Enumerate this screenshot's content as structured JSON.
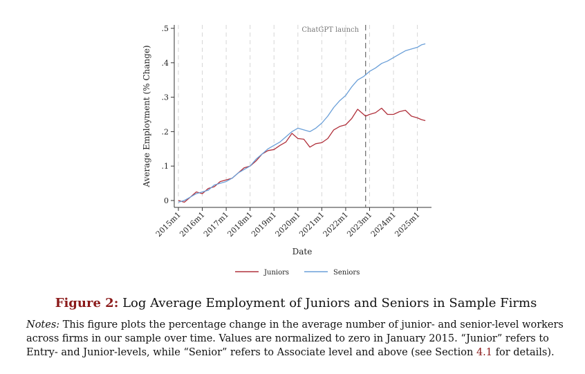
{
  "chart_data": {
    "type": "line",
    "xlabel": "Date",
    "ylabel": "Average Employment (% Change)",
    "x_ticks": [
      "2015m1",
      "2016m1",
      "2017m1",
      "2018m1",
      "2019m1",
      "2020m1",
      "2021m1",
      "2022m1",
      "2023m1",
      "2024m1",
      "2025m1"
    ],
    "xlim": [
      "2015-01",
      "2025-06"
    ],
    "y_ticks": [
      0,
      0.1,
      0.2,
      0.3,
      0.4,
      0.5
    ],
    "y_tick_labels": [
      "0",
      ".1",
      ".2",
      ".3",
      ".4",
      ".5"
    ],
    "ylim": [
      -0.02,
      0.51
    ],
    "grid": "vertical dashed at x ticks",
    "legend_position": "bottom",
    "annotation": {
      "text": "ChatGPT launch",
      "x": "2022-11",
      "style": "dashed vertical line"
    },
    "series": [
      {
        "name": "Juniors",
        "color": "#b0303b",
        "points": [
          [
            "2015-01",
            0.0
          ],
          [
            "2015-04",
            -0.005
          ],
          [
            "2015-07",
            0.01
          ],
          [
            "2015-10",
            0.025
          ],
          [
            "2016-01",
            0.02
          ],
          [
            "2016-04",
            0.035
          ],
          [
            "2016-07",
            0.04
          ],
          [
            "2016-10",
            0.055
          ],
          [
            "2017-01",
            0.06
          ],
          [
            "2017-04",
            0.065
          ],
          [
            "2017-07",
            0.08
          ],
          [
            "2017-10",
            0.095
          ],
          [
            "2018-01",
            0.1
          ],
          [
            "2018-04",
            0.115
          ],
          [
            "2018-07",
            0.135
          ],
          [
            "2018-10",
            0.145
          ],
          [
            "2019-01",
            0.148
          ],
          [
            "2019-04",
            0.16
          ],
          [
            "2019-07",
            0.17
          ],
          [
            "2019-10",
            0.195
          ],
          [
            "2020-01",
            0.18
          ],
          [
            "2020-04",
            0.178
          ],
          [
            "2020-07",
            0.155
          ],
          [
            "2020-10",
            0.165
          ],
          [
            "2021-01",
            0.168
          ],
          [
            "2021-04",
            0.18
          ],
          [
            "2021-07",
            0.205
          ],
          [
            "2021-10",
            0.215
          ],
          [
            "2022-01",
            0.22
          ],
          [
            "2022-04",
            0.238
          ],
          [
            "2022-07",
            0.265
          ],
          [
            "2022-10",
            0.25
          ],
          [
            "2022-11",
            0.245
          ],
          [
            "2023-01",
            0.25
          ],
          [
            "2023-04",
            0.255
          ],
          [
            "2023-07",
            0.268
          ],
          [
            "2023-10",
            0.25
          ],
          [
            "2024-01",
            0.25
          ],
          [
            "2024-04",
            0.258
          ],
          [
            "2024-07",
            0.262
          ],
          [
            "2024-10",
            0.245
          ],
          [
            "2025-01",
            0.24
          ],
          [
            "2025-03",
            0.235
          ],
          [
            "2025-05",
            0.232
          ]
        ]
      },
      {
        "name": "Seniors",
        "color": "#6a9fd8",
        "points": [
          [
            "2015-01",
            -0.005
          ],
          [
            "2015-04",
            0.0
          ],
          [
            "2015-07",
            0.01
          ],
          [
            "2015-10",
            0.02
          ],
          [
            "2016-01",
            0.025
          ],
          [
            "2016-04",
            0.03
          ],
          [
            "2016-07",
            0.045
          ],
          [
            "2016-10",
            0.05
          ],
          [
            "2017-01",
            0.055
          ],
          [
            "2017-04",
            0.065
          ],
          [
            "2017-07",
            0.08
          ],
          [
            "2017-10",
            0.09
          ],
          [
            "2018-01",
            0.1
          ],
          [
            "2018-04",
            0.12
          ],
          [
            "2018-07",
            0.135
          ],
          [
            "2018-10",
            0.15
          ],
          [
            "2019-01",
            0.16
          ],
          [
            "2019-04",
            0.17
          ],
          [
            "2019-07",
            0.185
          ],
          [
            "2019-10",
            0.2
          ],
          [
            "2020-01",
            0.21
          ],
          [
            "2020-04",
            0.205
          ],
          [
            "2020-07",
            0.2
          ],
          [
            "2020-10",
            0.21
          ],
          [
            "2021-01",
            0.225
          ],
          [
            "2021-04",
            0.245
          ],
          [
            "2021-07",
            0.27
          ],
          [
            "2021-10",
            0.29
          ],
          [
            "2022-01",
            0.305
          ],
          [
            "2022-04",
            0.33
          ],
          [
            "2022-07",
            0.35
          ],
          [
            "2022-10",
            0.36
          ],
          [
            "2023-01",
            0.375
          ],
          [
            "2023-04",
            0.385
          ],
          [
            "2023-07",
            0.398
          ],
          [
            "2023-10",
            0.405
          ],
          [
            "2024-01",
            0.415
          ],
          [
            "2024-04",
            0.425
          ],
          [
            "2024-07",
            0.435
          ],
          [
            "2024-10",
            0.44
          ],
          [
            "2025-01",
            0.445
          ],
          [
            "2025-03",
            0.452
          ],
          [
            "2025-05",
            0.455
          ]
        ]
      }
    ]
  },
  "figure": {
    "label": "Figure 2:",
    "title": "Log Average Employment of Juniors and Seniors in Sample Firms"
  },
  "notes": {
    "label": "Notes:",
    "text_before_ref": "This figure plots the percentage change in the average number of junior- and senior-level workers across firms in our sample over time. Values are normalized to zero in January 2015. “Junior” refers to Entry- and Junior-levels, while “Senior” refers to Associate level and above (see Section ",
    "ref": "4.1",
    "text_after_ref": " for details)."
  }
}
